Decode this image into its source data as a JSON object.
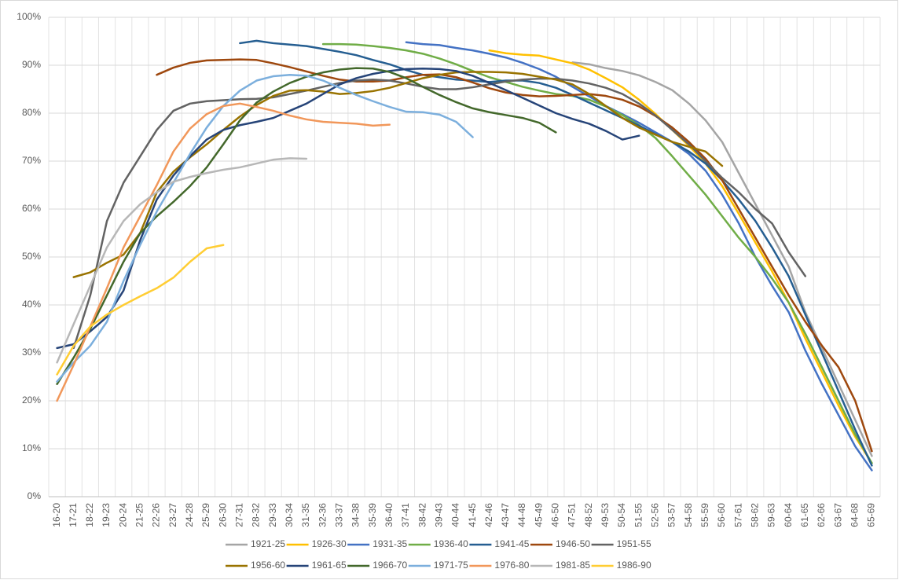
{
  "chart_data": {
    "type": "line",
    "categories": [
      "16-20",
      "17-21",
      "18-22",
      "19-23",
      "20-24",
      "21-25",
      "22-26",
      "23-27",
      "24-28",
      "25-29",
      "26-30",
      "27-31",
      "28-32",
      "29-33",
      "30-34",
      "31-35",
      "32-36",
      "33-37",
      "34-38",
      "35-39",
      "36-40",
      "37-41",
      "38-42",
      "39-43",
      "40-44",
      "41-45",
      "42-46",
      "43-47",
      "44-48",
      "45-49",
      "46-50",
      "47-51",
      "48-52",
      "49-53",
      "50-54",
      "51-55",
      "52-56",
      "53-57",
      "54-58",
      "55-59",
      "56-60",
      "57-61",
      "58-62",
      "59-63",
      "60-64",
      "61-65",
      "62-66",
      "63-67",
      "64-68",
      "65-69"
    ],
    "ylim": [
      0,
      100
    ],
    "yticks": [
      {
        "value": 0,
        "label": "0%"
      },
      {
        "value": 10,
        "label": "10%"
      },
      {
        "value": 20,
        "label": "20%"
      },
      {
        "value": 30,
        "label": "30%"
      },
      {
        "value": 40,
        "label": "40%"
      },
      {
        "value": 50,
        "label": "50%"
      },
      {
        "value": 60,
        "label": "60%"
      },
      {
        "value": 70,
        "label": "70%"
      },
      {
        "value": 80,
        "label": "80%"
      },
      {
        "value": 90,
        "label": "90%"
      },
      {
        "value": 100,
        "label": "100%"
      }
    ],
    "grid": true,
    "legend": "bottom",
    "series": [
      {
        "name": "1921-25",
        "color": "#a5a5a5",
        "values": [
          null,
          null,
          null,
          null,
          null,
          null,
          null,
          null,
          null,
          null,
          null,
          null,
          null,
          null,
          null,
          null,
          null,
          null,
          null,
          null,
          null,
          null,
          null,
          null,
          null,
          null,
          null,
          null,
          null,
          null,
          null,
          90.6,
          90.2,
          89.4,
          88.8,
          87.9,
          86.5,
          84.8,
          82,
          78.5,
          74,
          67.5,
          61,
          54.5,
          48,
          38.5,
          31,
          23.5,
          16,
          8.5
        ]
      },
      {
        "name": "1926-30",
        "color": "#ffc000",
        "values": [
          null,
          null,
          null,
          null,
          null,
          null,
          null,
          null,
          null,
          null,
          null,
          null,
          null,
          null,
          null,
          null,
          null,
          null,
          null,
          null,
          null,
          null,
          null,
          null,
          null,
          null,
          93.1,
          92.5,
          92.2,
          92.0,
          91.2,
          90.4,
          89.1,
          87.3,
          85.4,
          82.8,
          79.8,
          76.5,
          73.2,
          69.5,
          64.8,
          59,
          53,
          47,
          40.5,
          33,
          26,
          19,
          12.5,
          7
        ]
      },
      {
        "name": "1931-35",
        "color": "#4472c4",
        "values": [
          null,
          null,
          null,
          null,
          null,
          null,
          null,
          null,
          null,
          null,
          null,
          null,
          null,
          null,
          null,
          null,
          null,
          null,
          null,
          null,
          null,
          94.8,
          94.4,
          94.2,
          93.6,
          93.1,
          92.4,
          91.6,
          90.5,
          89.2,
          87.6,
          85.5,
          83.5,
          81.5,
          79.8,
          78,
          76,
          74,
          71.5,
          68,
          63,
          57,
          50,
          44,
          38.5,
          30.5,
          23.5,
          17,
          10.5,
          5.5
        ]
      },
      {
        "name": "1936-40",
        "color": "#70ad47",
        "values": [
          null,
          null,
          null,
          null,
          null,
          null,
          null,
          null,
          null,
          null,
          null,
          null,
          null,
          null,
          null,
          null,
          94.4,
          94.4,
          94.3,
          94.0,
          93.6,
          93.1,
          92.4,
          91.4,
          90.2,
          88.8,
          87.5,
          86.5,
          85.5,
          84.7,
          84.0,
          83.6,
          82.8,
          81.4,
          79.6,
          77.5,
          74.8,
          71,
          67,
          63,
          58.5,
          54,
          50,
          45.5,
          40.5,
          34,
          27,
          20,
          13,
          7
        ]
      },
      {
        "name": "1941-45",
        "color": "#255e91",
        "values": [
          null,
          null,
          null,
          null,
          null,
          null,
          null,
          null,
          null,
          null,
          null,
          94.6,
          95.1,
          94.6,
          94.3,
          94.0,
          93.4,
          92.8,
          92.1,
          91.1,
          90.2,
          89.0,
          88.0,
          87.5,
          87.0,
          86.8,
          86.5,
          86.8,
          86.8,
          86.3,
          85.3,
          83.8,
          82.2,
          80.6,
          79.0,
          77.4,
          75.6,
          74.0,
          72,
          69.5,
          66,
          62,
          57.5,
          52,
          46,
          38,
          30,
          22,
          14,
          6.5
        ]
      },
      {
        "name": "1946-50",
        "color": "#9e480e",
        "values": [
          null,
          null,
          null,
          null,
          null,
          null,
          88,
          89.5,
          90.5,
          91.0,
          91.1,
          91.2,
          91.1,
          90.4,
          89.6,
          88.7,
          87.8,
          87.0,
          86.6,
          86.6,
          86.8,
          87.5,
          88.0,
          88.1,
          87.5,
          86.4,
          85.2,
          84.3,
          83.8,
          83.5,
          83.6,
          83.8,
          84.0,
          83.6,
          82.8,
          81.4,
          79.4,
          77,
          74,
          70.5,
          66,
          60,
          54,
          48,
          42,
          36.5,
          31.5,
          27,
          20,
          9.5
        ]
      },
      {
        "name": "1951-55",
        "color": "#636363",
        "values": [
          null,
          31,
          42,
          57.5,
          65.5,
          71,
          76.5,
          80.5,
          82,
          82.5,
          82.7,
          82.9,
          83.0,
          83.3,
          84.0,
          84.7,
          85.5,
          86.3,
          86.8,
          87.0,
          86.8,
          86.2,
          85.5,
          85.0,
          85.0,
          85.4,
          86.0,
          86.6,
          87.0,
          87.2,
          87.2,
          86.8,
          86.2,
          85.3,
          84.0,
          82.0,
          79.5,
          76.5,
          73.5,
          70,
          66.5,
          63.5,
          60,
          57,
          51,
          46,
          null,
          null,
          null,
          null
        ]
      },
      {
        "name": "1956-60",
        "color": "#997300",
        "values": [
          null,
          45.8,
          46.8,
          48.8,
          50.5,
          55,
          63.5,
          67.8,
          70.8,
          73.5,
          76.5,
          79.3,
          81.7,
          83.6,
          84.7,
          84.8,
          84.5,
          84.0,
          84.2,
          84.6,
          85.3,
          86.3,
          87.3,
          88.0,
          88.5,
          88.6,
          88.6,
          88.5,
          88.2,
          87.6,
          87.0,
          86.0,
          84.0,
          81.5,
          79.0,
          77.0,
          75.5,
          74.0,
          73.0,
          72.0,
          69,
          null,
          null,
          null,
          null,
          null,
          null,
          null,
          null,
          null
        ]
      },
      {
        "name": "1961-65",
        "color": "#264478",
        "values": [
          31,
          31.8,
          34.5,
          37.5,
          43,
          53.5,
          62,
          67,
          71,
          74.5,
          76.5,
          77.5,
          78.2,
          79.0,
          80.5,
          82.0,
          84.0,
          86.0,
          87.3,
          88.2,
          88.8,
          89.2,
          89.3,
          89.2,
          88.8,
          87.8,
          86.3,
          84.8,
          83.2,
          81.6,
          80.0,
          78.8,
          77.8,
          76.3,
          74.5,
          75.3,
          null,
          null,
          null,
          null,
          null,
          null,
          null,
          null,
          null,
          null,
          null,
          null,
          null,
          null
        ]
      },
      {
        "name": "1966-70",
        "color": "#43682b",
        "values": [
          23.5,
          29,
          35,
          42,
          49,
          55,
          58.5,
          61.5,
          64.8,
          68.7,
          73.5,
          78.5,
          82.2,
          84.5,
          86.3,
          87.6,
          88.5,
          89.1,
          89.4,
          89.3,
          88.6,
          87.3,
          85.5,
          83.8,
          82.3,
          81.0,
          80.2,
          79.6,
          79.0,
          78.0,
          76.0,
          null,
          null,
          null,
          null,
          null,
          null,
          null,
          null,
          null,
          null,
          null,
          null,
          null,
          null,
          null,
          null,
          null,
          null,
          null
        ]
      },
      {
        "name": "1971-75",
        "color": "#7cafdd",
        "values": [
          24,
          28,
          31.5,
          36.5,
          45,
          52.5,
          59.5,
          65.5,
          71.5,
          77,
          81.5,
          84.7,
          86.8,
          87.7,
          88.0,
          87.8,
          86.8,
          85.3,
          83.8,
          82.5,
          81.3,
          80.3,
          80.2,
          79.7,
          78.2,
          75,
          null,
          null,
          null,
          null,
          null,
          null,
          null,
          null,
          null,
          null,
          null,
          null,
          null,
          null,
          null,
          null,
          null,
          null,
          null,
          null,
          null,
          null,
          null,
          null
        ]
      },
      {
        "name": "1976-80",
        "color": "#f1975a",
        "values": [
          20,
          27.5,
          35.5,
          43.5,
          52,
          58.5,
          65,
          72,
          76.8,
          79.8,
          81.5,
          82,
          81.3,
          80.5,
          79.5,
          78.7,
          78.2,
          78.0,
          77.8,
          77.4,
          77.6,
          null,
          null,
          null,
          null,
          null,
          null,
          null,
          null,
          null,
          null,
          null,
          null,
          null,
          null,
          null,
          null,
          null,
          null,
          null,
          null,
          null,
          null,
          null,
          null,
          null,
          null,
          null,
          null,
          null
        ]
      },
      {
        "name": "1981-85",
        "color": "#b7b7b7",
        "values": [
          28,
          36,
          44,
          52,
          57.5,
          61,
          63.5,
          65.7,
          66.7,
          67.5,
          68.2,
          68.7,
          69.5,
          70.3,
          70.6,
          70.5,
          null,
          null,
          null,
          null,
          null,
          null,
          null,
          null,
          null,
          null,
          null,
          null,
          null,
          null,
          null,
          null,
          null,
          null,
          null,
          null,
          null,
          null,
          null,
          null,
          null,
          null,
          null,
          null,
          null,
          null,
          null,
          null,
          null,
          null
        ]
      },
      {
        "name": "1986-90",
        "color": "#ffcd33",
        "values": [
          25.5,
          31.5,
          35.5,
          38,
          40,
          41.8,
          43.5,
          45.7,
          49,
          51.8,
          52.5,
          null,
          null,
          null,
          null,
          null,
          null,
          null,
          null,
          null,
          null,
          null,
          null,
          null,
          null,
          null,
          null,
          null,
          null,
          null,
          null,
          null,
          null,
          null,
          null,
          null,
          null,
          null,
          null,
          null,
          null,
          null,
          null,
          null,
          null,
          null,
          null,
          null,
          null,
          null
        ]
      }
    ]
  }
}
